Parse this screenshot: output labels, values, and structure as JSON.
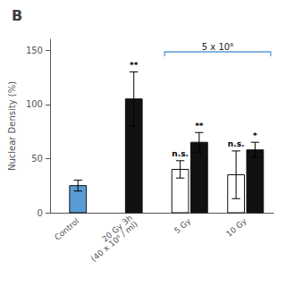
{
  "chart_data": {
    "type": "bar",
    "title": "B",
    "ylabel": "Nuclear Density (%)",
    "categories": [
      "Control",
      "20 Gy 3h\n(40 x 10⁶ / ml)",
      "5 Gy",
      "10 Gy"
    ],
    "series": [
      {
        "values": [
          25,
          105,
          40,
          35
        ],
        "errors": [
          5,
          25,
          8,
          22
        ],
        "colors": [
          "#5b9bd5",
          "#111111",
          "#ffffff",
          "#ffffff"
        ],
        "annotations": [
          null,
          "**",
          "n.s.",
          "n.s."
        ]
      },
      {
        "values": [
          null,
          null,
          65,
          58
        ],
        "errors": [
          null,
          null,
          9,
          7
        ],
        "colors": [
          null,
          null,
          "#111111",
          "#111111"
        ],
        "annotations": [
          null,
          null,
          "**",
          "*"
        ]
      }
    ],
    "bracket": {
      "label": "5 x 10⁶",
      "categories": [
        "5 Gy",
        "10 Gy"
      ]
    },
    "ylim": [
      0,
      160
    ],
    "yticks": [
      0,
      50,
      100,
      150
    ],
    "grid": false
  }
}
